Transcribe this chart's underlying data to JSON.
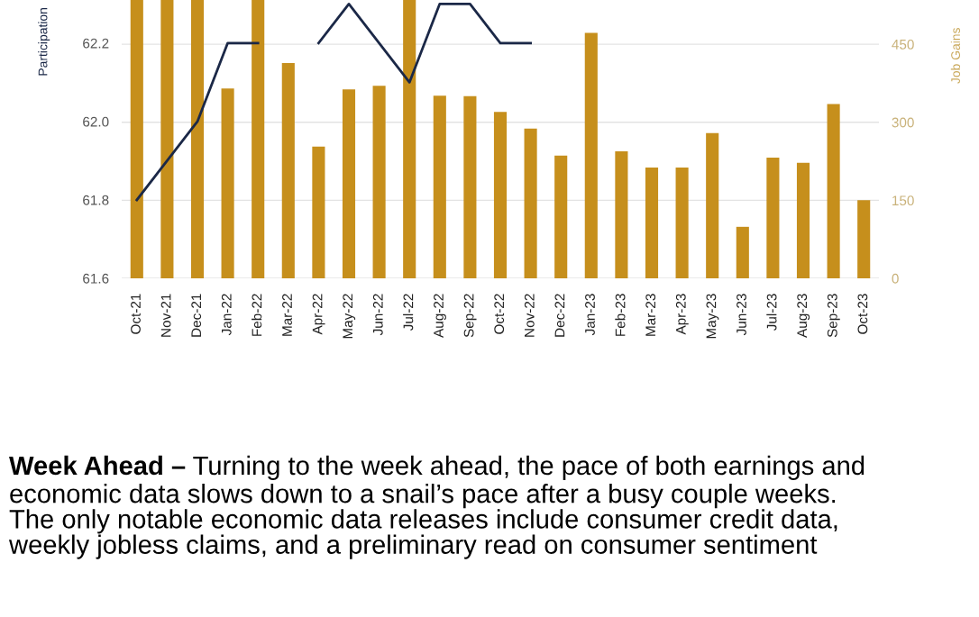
{
  "chart_data": {
    "type": "bar",
    "ylabel": "Participation",
    "y2label": "Job Gains",
    "categories": [
      "Oct-21",
      "Nov-21",
      "Dec-21",
      "Jan-22",
      "Feb-22",
      "Mar-22",
      "Apr-22",
      "May-22",
      "Jun-22",
      "Jul-22",
      "Aug-22",
      "Sep-22",
      "Oct-22",
      "Nov-22",
      "Dec-22",
      "Jan-23",
      "Feb-23",
      "Mar-23",
      "Apr-23",
      "May-23",
      "Jun-23",
      "Jul-23",
      "Aug-23",
      "Sep-23",
      "Oct-23"
    ],
    "series": [
      {
        "axis": "y2",
        "color": "#c68f1c",
        "values": [
          535,
          535,
          535,
          365,
          535,
          414,
          253,
          363,
          370,
          535,
          351,
          350,
          320,
          288,
          236,
          472,
          244,
          213,
          213,
          279,
          99,
          232,
          222,
          335,
          150
        ]
      },
      {
        "type": "line",
        "axis": "y",
        "color": "#1b2847",
        "values": [
          61.8,
          61.9,
          62.0,
          62.2,
          62.2,
          null,
          62.2,
          62.3,
          62.2,
          62.1,
          62.3,
          62.3,
          62.2,
          62.2,
          null,
          null,
          null,
          null,
          null,
          null,
          null,
          null,
          null,
          null,
          null
        ]
      }
    ],
    "ylim": [
      61.6,
      62.31
    ],
    "yticks": [
      61.6,
      61.8,
      {
        "value": 62.0,
        "label": "62.0"
      },
      62.2
    ],
    "y2lim": [
      0,
      535
    ],
    "y2ticks": [
      0,
      150,
      300,
      450
    ],
    "grid": "y",
    "legend": false,
    "marker": "none",
    "line_style": "solid",
    "annotations": [
      "Week Ahead –",
      "Turning to the week ahead, the pace of both earnings and\neconomic data slows down to a snail’s pace after a busy couple weeks.\nThe only notable economic data releases include consumer credit data,\nweekly jobless claims, and a preliminary read on consumer sentiment"
    ]
  }
}
